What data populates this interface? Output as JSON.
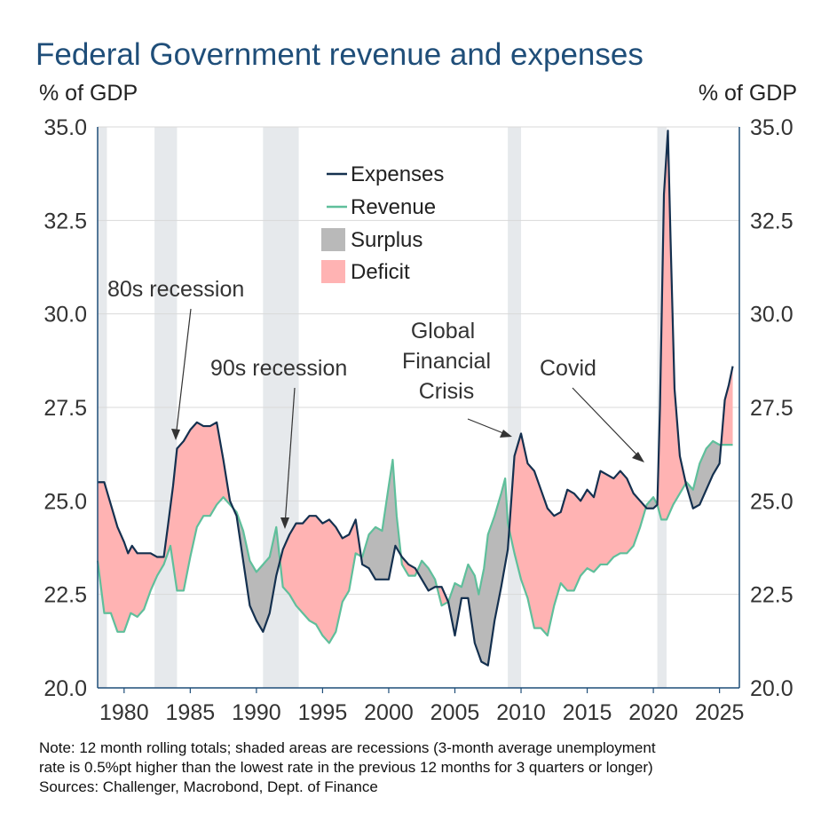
{
  "chart_data": {
    "type": "area",
    "title": "Federal Government revenue and expenses",
    "ylabel_left": "% of GDP",
    "ylabel_right": "% of GDP",
    "xlim": [
      1978.0,
      2026.5
    ],
    "ylim": [
      20.0,
      35.0
    ],
    "x_ticks": [
      "1980",
      "1985",
      "1990",
      "1995",
      "2000",
      "2005",
      "2010",
      "2015",
      "2020",
      "2025"
    ],
    "y_ticks": [
      "20.0",
      "22.5",
      "25.0",
      "27.5",
      "30.0",
      "32.5",
      "35.0"
    ],
    "grid": "horizontal",
    "legend_position": "top-center",
    "legend": [
      {
        "name": "Expenses",
        "kind": "line",
        "color": "#14304f"
      },
      {
        "name": "Revenue",
        "kind": "line",
        "color": "#5fbf9b"
      },
      {
        "name": "Surplus",
        "kind": "fill",
        "color": "#b9b9b9"
      },
      {
        "name": "Deficit",
        "kind": "fill",
        "color": "#ffb3b3"
      }
    ],
    "recessions": [
      [
        1978.0,
        1978.7
      ],
      [
        1982.3,
        1984.0
      ],
      [
        1990.5,
        1993.2
      ],
      [
        2009.0,
        2010.0
      ],
      [
        2020.3,
        2021.0
      ]
    ],
    "series": [
      {
        "name": "Expenses",
        "points": [
          [
            1978.0,
            25.5
          ],
          [
            1978.5,
            25.5
          ],
          [
            1979.0,
            24.9
          ],
          [
            1979.5,
            24.3
          ],
          [
            1980.0,
            23.9
          ],
          [
            1980.3,
            23.6
          ],
          [
            1980.6,
            23.8
          ],
          [
            1981.0,
            23.6
          ],
          [
            1981.5,
            23.6
          ],
          [
            1982.0,
            23.6
          ],
          [
            1982.5,
            23.5
          ],
          [
            1983.0,
            23.5
          ],
          [
            1983.3,
            24.3
          ],
          [
            1983.7,
            25.4
          ],
          [
            1984.0,
            26.4
          ],
          [
            1984.5,
            26.6
          ],
          [
            1985.0,
            26.9
          ],
          [
            1985.5,
            27.1
          ],
          [
            1986.0,
            27.0
          ],
          [
            1986.5,
            27.0
          ],
          [
            1987.0,
            27.1
          ],
          [
            1987.5,
            26.1
          ],
          [
            1988.0,
            25.0
          ],
          [
            1988.5,
            24.6
          ],
          [
            1989.0,
            23.4
          ],
          [
            1989.5,
            22.2
          ],
          [
            1990.0,
            21.8
          ],
          [
            1990.5,
            21.5
          ],
          [
            1991.0,
            22.0
          ],
          [
            1991.5,
            23.0
          ],
          [
            1992.0,
            23.7
          ],
          [
            1992.5,
            24.1
          ],
          [
            1993.0,
            24.4
          ],
          [
            1993.5,
            24.4
          ],
          [
            1994.0,
            24.6
          ],
          [
            1994.5,
            24.6
          ],
          [
            1995.0,
            24.4
          ],
          [
            1995.5,
            24.5
          ],
          [
            1996.0,
            24.3
          ],
          [
            1996.5,
            24.0
          ],
          [
            1997.0,
            24.1
          ],
          [
            1997.5,
            24.5
          ],
          [
            1998.0,
            23.3
          ],
          [
            1998.5,
            23.2
          ],
          [
            1999.0,
            22.9
          ],
          [
            1999.5,
            22.9
          ],
          [
            2000.0,
            22.9
          ],
          [
            2000.5,
            23.8
          ],
          [
            2001.0,
            23.5
          ],
          [
            2001.5,
            23.3
          ],
          [
            2002.0,
            23.2
          ],
          [
            2002.5,
            22.9
          ],
          [
            2003.0,
            22.6
          ],
          [
            2003.5,
            22.7
          ],
          [
            2004.0,
            22.7
          ],
          [
            2004.5,
            22.3
          ],
          [
            2005.0,
            21.4
          ],
          [
            2005.5,
            22.4
          ],
          [
            2006.0,
            22.4
          ],
          [
            2006.5,
            21.2
          ],
          [
            2007.0,
            20.7
          ],
          [
            2007.5,
            20.6
          ],
          [
            2008.0,
            21.8
          ],
          [
            2008.5,
            22.7
          ],
          [
            2009.0,
            23.7
          ],
          [
            2009.5,
            26.2
          ],
          [
            2010.0,
            26.8
          ],
          [
            2010.5,
            26.0
          ],
          [
            2011.0,
            25.8
          ],
          [
            2011.5,
            25.3
          ],
          [
            2012.0,
            24.8
          ],
          [
            2012.5,
            24.6
          ],
          [
            2013.0,
            24.7
          ],
          [
            2013.5,
            25.3
          ],
          [
            2014.0,
            25.2
          ],
          [
            2014.5,
            25.0
          ],
          [
            2015.0,
            25.3
          ],
          [
            2015.5,
            25.1
          ],
          [
            2016.0,
            25.8
          ],
          [
            2016.5,
            25.7
          ],
          [
            2017.0,
            25.6
          ],
          [
            2017.5,
            25.8
          ],
          [
            2018.0,
            25.6
          ],
          [
            2018.5,
            25.2
          ],
          [
            2019.0,
            25.0
          ],
          [
            2019.5,
            24.8
          ],
          [
            2020.0,
            24.8
          ],
          [
            2020.3,
            24.9
          ],
          [
            2020.5,
            27.5
          ],
          [
            2020.8,
            33.2
          ],
          [
            2021.1,
            34.9
          ],
          [
            2021.3,
            32.0
          ],
          [
            2021.6,
            28.0
          ],
          [
            2022.0,
            26.2
          ],
          [
            2022.5,
            25.4
          ],
          [
            2023.0,
            24.8
          ],
          [
            2023.5,
            24.9
          ],
          [
            2024.0,
            25.3
          ],
          [
            2024.5,
            25.7
          ],
          [
            2025.0,
            26.0
          ],
          [
            2025.4,
            27.7
          ],
          [
            2025.7,
            28.1
          ],
          [
            2026.0,
            28.6
          ]
        ]
      },
      {
        "name": "Revenue",
        "points": [
          [
            1978.0,
            23.4
          ],
          [
            1978.5,
            22.0
          ],
          [
            1979.0,
            22.0
          ],
          [
            1979.5,
            21.5
          ],
          [
            1980.0,
            21.5
          ],
          [
            1980.5,
            22.0
          ],
          [
            1981.0,
            21.9
          ],
          [
            1981.5,
            22.1
          ],
          [
            1982.0,
            22.6
          ],
          [
            1982.5,
            23.0
          ],
          [
            1983.0,
            23.3
          ],
          [
            1983.5,
            23.8
          ],
          [
            1984.0,
            22.6
          ],
          [
            1984.5,
            22.6
          ],
          [
            1985.0,
            23.5
          ],
          [
            1985.5,
            24.3
          ],
          [
            1986.0,
            24.6
          ],
          [
            1986.5,
            24.6
          ],
          [
            1987.0,
            24.9
          ],
          [
            1987.5,
            25.1
          ],
          [
            1988.0,
            24.9
          ],
          [
            1988.5,
            24.7
          ],
          [
            1989.0,
            24.2
          ],
          [
            1989.5,
            23.4
          ],
          [
            1990.0,
            23.1
          ],
          [
            1990.5,
            23.3
          ],
          [
            1991.0,
            23.5
          ],
          [
            1991.5,
            24.3
          ],
          [
            1992.0,
            22.7
          ],
          [
            1992.5,
            22.5
          ],
          [
            1993.0,
            22.2
          ],
          [
            1993.5,
            22.0
          ],
          [
            1994.0,
            21.8
          ],
          [
            1994.5,
            21.7
          ],
          [
            1995.0,
            21.4
          ],
          [
            1995.5,
            21.2
          ],
          [
            1996.0,
            21.5
          ],
          [
            1996.5,
            22.3
          ],
          [
            1997.0,
            22.6
          ],
          [
            1997.5,
            23.6
          ],
          [
            1998.0,
            23.5
          ],
          [
            1998.5,
            24.1
          ],
          [
            1999.0,
            24.3
          ],
          [
            1999.5,
            24.2
          ],
          [
            2000.0,
            25.4
          ],
          [
            2000.3,
            26.1
          ],
          [
            2000.6,
            24.6
          ],
          [
            2001.0,
            23.3
          ],
          [
            2001.5,
            23.0
          ],
          [
            2002.0,
            23.0
          ],
          [
            2002.5,
            23.4
          ],
          [
            2003.0,
            23.2
          ],
          [
            2003.5,
            22.9
          ],
          [
            2004.0,
            22.2
          ],
          [
            2004.5,
            22.3
          ],
          [
            2005.0,
            22.8
          ],
          [
            2005.5,
            22.7
          ],
          [
            2006.0,
            23.3
          ],
          [
            2006.5,
            23.0
          ],
          [
            2006.8,
            22.5
          ],
          [
            2007.2,
            23.2
          ],
          [
            2007.5,
            24.1
          ],
          [
            2008.0,
            24.6
          ],
          [
            2008.5,
            25.2
          ],
          [
            2008.8,
            25.6
          ],
          [
            2009.0,
            24.4
          ],
          [
            2009.5,
            23.6
          ],
          [
            2010.0,
            22.9
          ],
          [
            2010.5,
            22.4
          ],
          [
            2011.0,
            21.6
          ],
          [
            2011.5,
            21.6
          ],
          [
            2012.0,
            21.4
          ],
          [
            2012.5,
            22.2
          ],
          [
            2013.0,
            22.8
          ],
          [
            2013.5,
            22.6
          ],
          [
            2014.0,
            22.6
          ],
          [
            2014.5,
            23.0
          ],
          [
            2015.0,
            23.2
          ],
          [
            2015.5,
            23.1
          ],
          [
            2016.0,
            23.3
          ],
          [
            2016.5,
            23.3
          ],
          [
            2017.0,
            23.5
          ],
          [
            2017.5,
            23.6
          ],
          [
            2018.0,
            23.6
          ],
          [
            2018.5,
            23.8
          ],
          [
            2019.0,
            24.3
          ],
          [
            2019.5,
            24.9
          ],
          [
            2020.0,
            25.1
          ],
          [
            2020.3,
            24.9
          ],
          [
            2020.6,
            24.5
          ],
          [
            2021.0,
            24.5
          ],
          [
            2021.5,
            24.9
          ],
          [
            2022.0,
            25.2
          ],
          [
            2022.5,
            25.5
          ],
          [
            2023.0,
            25.3
          ],
          [
            2023.5,
            26.0
          ],
          [
            2024.0,
            26.4
          ],
          [
            2024.5,
            26.6
          ],
          [
            2025.0,
            26.5
          ],
          [
            2025.5,
            26.5
          ],
          [
            2026.0,
            26.5
          ]
        ]
      }
    ],
    "annotations": [
      {
        "text": "80s recession",
        "points_to": [
          1984.0,
          26.4
        ]
      },
      {
        "text": "90s recession",
        "points_to": [
          1992.5,
          24.1
        ]
      },
      {
        "text": "Global Financial Crisis",
        "points_to": [
          2010.0,
          26.8
        ]
      },
      {
        "text": "Covid",
        "points_to": [
          2020.3,
          24.9
        ]
      }
    ]
  },
  "annotations_text": {
    "a80": "80s recession",
    "a90": "90s recession",
    "gfc1": "Global",
    "gfc2": "Financial",
    "gfc3": "Crisis",
    "covid": "Covid"
  },
  "notes": {
    "line1": "Note: 12 month rolling totals; shaded areas are recessions (3-month average unemployment",
    "line2": "rate is 0.5%pt higher than the lowest rate in the previous 12 months for 3 quarters or longer)",
    "line3": "Sources: Challenger, Macrobond, Dept. of Finance"
  },
  "colors": {
    "title": "#1f4e79",
    "expenses": "#14304f",
    "revenue": "#5fbf9b",
    "surplus": "#b9b9b9",
    "deficit": "#ffb3b3",
    "recession": "#e6e9ec",
    "grid": "#d9d9d9"
  }
}
